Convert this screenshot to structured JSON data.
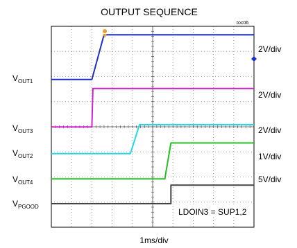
{
  "chart_data": {
    "type": "line",
    "title": "OUTPUT SEQUENCE",
    "figure_id": "toc06",
    "xlabel": "1ms/div",
    "annotation": "LDOIN3 = SUP1,2",
    "x_divisions": 10,
    "y_divisions": 8,
    "x_range_divisions": [
      0,
      10
    ],
    "grid": true,
    "trigger_marker_color": "#e8a030",
    "series": [
      {
        "label": "OUT1",
        "prefix": "V",
        "sub": "OUT1",
        "scale": "2V/div",
        "color": "#1a2ecc",
        "x": [
          0.0,
          2.0,
          2.6,
          10.0
        ],
        "y": [
          -0.05,
          -0.05,
          1.73,
          1.73
        ]
      },
      {
        "label": "OUT3",
        "prefix": "V",
        "sub": "OUT3",
        "scale": "2V/div",
        "color": "#cc22cc",
        "x": [
          0.0,
          2.0,
          2.05,
          10.0
        ],
        "y": [
          0.05,
          0.05,
          1.58,
          1.58
        ]
      },
      {
        "label": "OUT2",
        "prefix": "V",
        "sub": "OUT2",
        "scale": "2V/div",
        "color": "#22d8e8",
        "x": [
          0.0,
          3.9,
          4.35,
          10.0
        ],
        "y": [
          -0.02,
          -0.02,
          1.13,
          1.13
        ]
      },
      {
        "label": "OUT4",
        "prefix": "V",
        "sub": "OUT4",
        "scale": "1V/div",
        "color": "#22c022",
        "x": [
          0.0,
          5.6,
          5.9,
          10.0
        ],
        "y": [
          0.02,
          0.02,
          1.45,
          1.45
        ]
      },
      {
        "label": "PGOOD",
        "prefix": "V",
        "sub": "PGOOD",
        "scale": "5V/div",
        "color": "#444444",
        "x": [
          0.0,
          5.9,
          5.9,
          10.0
        ],
        "y": [
          0.0,
          0.0,
          0.74,
          0.74
        ]
      }
    ]
  }
}
